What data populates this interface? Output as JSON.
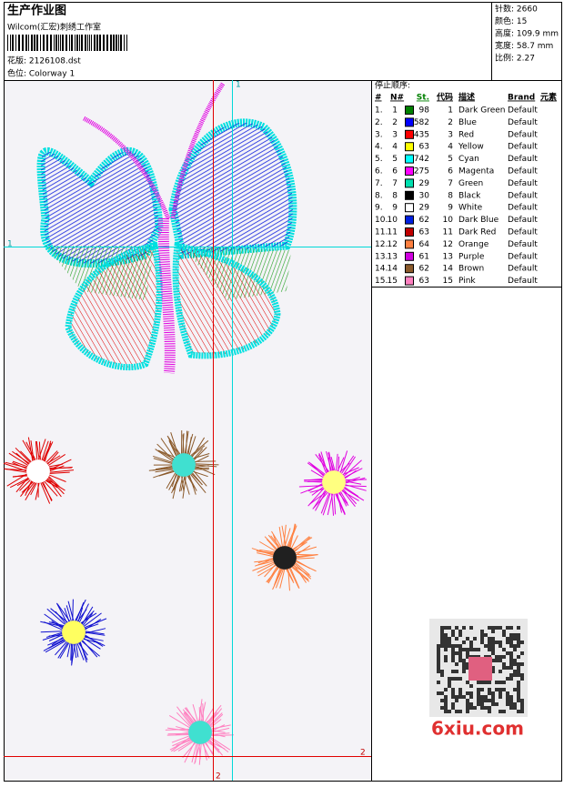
{
  "header": {
    "title": "生产作业图",
    "studio": "Wilcom(汇宏)刺绣工作室",
    "design": "花版: 2126108.dst",
    "colorway": "色位: Colorway 1",
    "stats": [
      "针数: 2660",
      "颜色: 15",
      "高度: 109.9 mm",
      "宽度: 58.7 mm",
      "比例: 2.27"
    ]
  },
  "guide_labels": {
    "cyan_top": "1",
    "cyan_left": "1",
    "red_right": "2",
    "red_bottom": "2"
  },
  "table": {
    "caption": "停止顺序:",
    "columns": [
      "#",
      "N#",
      "St.",
      "代码",
      "描述",
      "Brand",
      "元素"
    ],
    "rows": [
      [
        "1.",
        "1",
        "#008000",
        98,
        "1",
        "Dark Green",
        "Default"
      ],
      [
        "2.",
        "2",
        "#0000ff",
        582,
        "2",
        "Blue",
        "Default"
      ],
      [
        "3.",
        "3",
        "#ff0000",
        435,
        "3",
        "Red",
        "Default"
      ],
      [
        "4.",
        "4",
        "#ffff00",
        63,
        "4",
        "Yellow",
        "Default"
      ],
      [
        "5.",
        "5",
        "#00ffff",
        742,
        "5",
        "Cyan",
        "Default"
      ],
      [
        "6.",
        "6",
        "#ff00ff",
        275,
        "6",
        "Magenta",
        "Default"
      ],
      [
        "7.",
        "7",
        "#00e0b0",
        29,
        "7",
        "Green",
        "Default"
      ],
      [
        "8.",
        "8",
        "#000000",
        30,
        "8",
        "Black",
        "Default"
      ],
      [
        "9.",
        "9",
        "#ffffff",
        29,
        "9",
        "White",
        "Default"
      ],
      [
        "10.",
        "10",
        "#0020e0",
        62,
        "10",
        "Dark Blue",
        "Default"
      ],
      [
        "11.",
        "11",
        "#c00000",
        63,
        "11",
        "Dark Red",
        "Default"
      ],
      [
        "12.",
        "12",
        "#ff8040",
        64,
        "12",
        "Orange",
        "Default"
      ],
      [
        "13.",
        "13",
        "#d000e0",
        61,
        "13",
        "Purple",
        "Default"
      ],
      [
        "14.",
        "14",
        "#8b5a2b",
        62,
        "14",
        "Brown",
        "Default"
      ],
      [
        "15.",
        "15",
        "#ff80c0",
        63,
        "15",
        "Pink",
        "Default"
      ]
    ]
  },
  "watermark": "6xiu.com"
}
